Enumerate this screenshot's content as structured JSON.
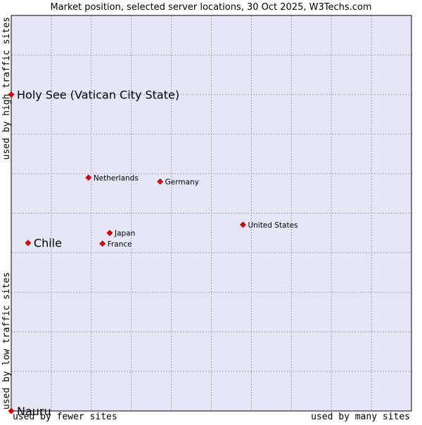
{
  "chart_data": {
    "type": "scatter",
    "title": "Market position, selected server locations, 30 Oct 2025, W3Techs.com",
    "xlabel_left": "used by fewer sites",
    "xlabel_right": "used by many sites",
    "ylabel_bottom": "used by low traffic sites",
    "ylabel_top": "used by high traffic sites",
    "xlim": [
      0,
      10
    ],
    "ylim": [
      0,
      10
    ],
    "grid": true,
    "colors": {
      "plot_background": "#e6e6f7",
      "grid": "#9f9fbf",
      "marker": "#e00000",
      "axis": "#000000"
    },
    "points": [
      {
        "name": "Holy See (Vatican City State)",
        "x": 0.0,
        "y": 8.0,
        "emphasis": true
      },
      {
        "name": "Chile",
        "x": 0.42,
        "y": 4.25,
        "emphasis": true
      },
      {
        "name": "Nauru",
        "x": 0.0,
        "y": 0.0,
        "emphasis": true
      },
      {
        "name": "Netherlands",
        "x": 1.93,
        "y": 5.9,
        "emphasis": false
      },
      {
        "name": "Germany",
        "x": 3.72,
        "y": 5.8,
        "emphasis": false
      },
      {
        "name": "United States",
        "x": 5.79,
        "y": 4.71,
        "emphasis": false
      },
      {
        "name": "Japan",
        "x": 2.46,
        "y": 4.5,
        "emphasis": false
      },
      {
        "name": "France",
        "x": 2.28,
        "y": 4.23,
        "emphasis": false
      }
    ]
  }
}
